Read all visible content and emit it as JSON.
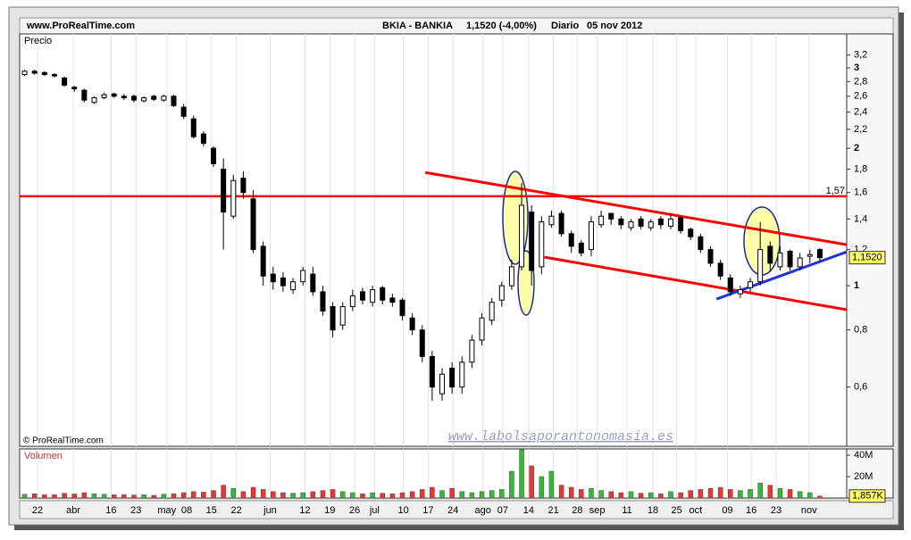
{
  "header": {
    "site": "www.ProRealTime.com",
    "ticker": "BKIA - BANKIA",
    "quote": "1,1520 (-4,00%)",
    "period": "Diario",
    "date": "05 nov 2012"
  },
  "chart_data": [
    {
      "type": "candlestick",
      "title": "Precio",
      "ylog": true,
      "xlim": [
        -0.5,
        82.7
      ],
      "ylim": [
        0.445,
        3.56
      ],
      "xticks": [
        {
          "value": 1.3,
          "label": "22"
        },
        {
          "value": 4.9,
          "label": "abr"
        },
        {
          "value": 8.7,
          "label": "16"
        },
        {
          "value": 11.2,
          "label": "23"
        },
        {
          "value": 14.3,
          "label": "may"
        },
        {
          "value": 16.3,
          "label": "08"
        },
        {
          "value": 18.8,
          "label": "15"
        },
        {
          "value": 21.3,
          "label": "22"
        },
        {
          "value": 24.7,
          "label": "jun"
        },
        {
          "value": 28.2,
          "label": "12"
        },
        {
          "value": 30.7,
          "label": "19"
        },
        {
          "value": 33.2,
          "label": "26"
        },
        {
          "value": 35.2,
          "label": "jul"
        },
        {
          "value": 38.1,
          "label": "10"
        },
        {
          "value": 40.6,
          "label": "17"
        },
        {
          "value": 43.1,
          "label": "24"
        },
        {
          "value": 46.1,
          "label": "ago"
        },
        {
          "value": 48.1,
          "label": "07"
        },
        {
          "value": 50.7,
          "label": "14"
        },
        {
          "value": 53.2,
          "label": "21"
        },
        {
          "value": 55.6,
          "label": "28"
        },
        {
          "value": 57.6,
          "label": "sep"
        },
        {
          "value": 60.6,
          "label": "11"
        },
        {
          "value": 63.2,
          "label": "18"
        },
        {
          "value": 65.6,
          "label": "25"
        },
        {
          "value": 67.5,
          "label": "oct"
        },
        {
          "value": 70.7,
          "label": "09"
        },
        {
          "value": 73.1,
          "label": "16"
        },
        {
          "value": 75.6,
          "label": "23"
        },
        {
          "value": 78.9,
          "label": "nov"
        }
      ],
      "yticks": [
        {
          "value": 3.2,
          "label": "3,2"
        },
        3,
        {
          "value": 2.8,
          "label": "2,8"
        },
        {
          "value": 2.6,
          "label": "2,6"
        },
        {
          "value": 2.4,
          "label": "2,4"
        },
        {
          "value": 2.2,
          "label": "2,2"
        },
        2,
        {
          "value": 1.8,
          "label": "1,8"
        },
        {
          "value": 1.6,
          "label": "1,6"
        },
        {
          "value": 1.4,
          "label": "1,4"
        },
        {
          "value": 1.2,
          "label": "1,2"
        },
        1,
        {
          "value": 0.8,
          "label": "0,8"
        },
        {
          "value": 0.6,
          "label": "0,6"
        }
      ],
      "open": [
        2.9,
        2.95,
        2.93,
        2.9,
        2.85,
        2.72,
        2.68,
        2.52,
        2.58,
        2.63,
        2.6,
        2.6,
        2.54,
        2.6,
        2.55,
        2.6,
        2.46,
        2.32,
        2.15,
        2.0,
        1.8,
        1.42,
        1.72,
        1.55,
        1.22,
        1.06,
        1.04,
        0.98,
        1.02,
        1.06,
        0.97,
        0.9,
        0.82,
        0.9,
        0.97,
        0.92,
        0.99,
        0.94,
        0.93,
        0.85,
        0.8,
        0.7,
        0.58,
        0.66,
        0.6,
        0.68,
        0.76,
        0.84,
        0.93,
        1.0,
        1.1,
        1.45,
        1.1,
        1.36,
        1.44,
        1.3,
        1.24,
        1.2,
        1.36,
        1.44,
        1.4,
        1.34,
        1.4,
        1.34,
        1.4,
        1.35,
        1.41,
        1.33,
        1.28,
        1.2,
        1.12,
        1.04,
        0.96,
        0.99,
        1.02,
        1.22,
        1.1,
        1.19,
        1.1,
        1.16,
        1.2
      ],
      "high": [
        2.97,
        2.97,
        2.95,
        2.92,
        2.87,
        2.74,
        2.7,
        2.6,
        2.65,
        2.65,
        2.63,
        2.62,
        2.6,
        2.62,
        2.62,
        2.62,
        2.5,
        2.36,
        2.18,
        2.02,
        1.9,
        1.75,
        1.78,
        1.62,
        1.25,
        1.1,
        1.07,
        1.04,
        1.1,
        1.1,
        1.0,
        0.92,
        0.92,
        0.98,
        0.99,
        1.0,
        1.0,
        0.96,
        0.94,
        0.87,
        0.82,
        0.72,
        0.66,
        0.68,
        0.7,
        0.78,
        0.87,
        0.94,
        1.02,
        1.14,
        1.68,
        1.5,
        1.42,
        1.46,
        1.46,
        1.32,
        1.26,
        1.42,
        1.46,
        1.44,
        1.42,
        1.4,
        1.42,
        1.4,
        1.42,
        1.44,
        1.42,
        1.34,
        1.3,
        1.22,
        1.14,
        1.06,
        1.0,
        1.04,
        1.38,
        1.25,
        1.22,
        1.2,
        1.18,
        1.2,
        1.21
      ],
      "low": [
        2.88,
        2.9,
        2.88,
        2.86,
        2.73,
        2.66,
        2.52,
        2.5,
        2.56,
        2.58,
        2.55,
        2.52,
        2.52,
        2.54,
        2.53,
        2.46,
        2.32,
        2.1,
        2.02,
        1.82,
        1.2,
        1.4,
        1.55,
        1.18,
        1.0,
        0.98,
        0.97,
        0.96,
        1.0,
        0.95,
        0.86,
        0.77,
        0.8,
        0.88,
        0.91,
        0.9,
        0.91,
        0.9,
        0.84,
        0.78,
        0.68,
        0.56,
        0.56,
        0.58,
        0.58,
        0.66,
        0.74,
        0.82,
        0.9,
        0.98,
        1.08,
        1.0,
        1.06,
        1.34,
        1.28,
        1.18,
        1.16,
        1.16,
        1.34,
        1.36,
        1.33,
        1.32,
        1.33,
        1.32,
        1.33,
        1.33,
        1.3,
        1.26,
        1.18,
        1.1,
        1.03,
        0.95,
        0.94,
        0.97,
        1.0,
        1.08,
        1.08,
        1.08,
        1.08,
        1.12,
        1.13
      ],
      "close": [
        2.95,
        2.92,
        2.9,
        2.88,
        2.75,
        2.7,
        2.55,
        2.58,
        2.62,
        2.6,
        2.58,
        2.55,
        2.58,
        2.56,
        2.6,
        2.48,
        2.35,
        2.12,
        2.05,
        1.85,
        1.45,
        1.7,
        1.6,
        1.2,
        1.05,
        1.02,
        1.0,
        1.02,
        1.08,
        0.97,
        0.88,
        0.8,
        0.9,
        0.95,
        0.93,
        0.98,
        0.93,
        0.92,
        0.86,
        0.8,
        0.7,
        0.6,
        0.64,
        0.6,
        0.68,
        0.76,
        0.85,
        0.92,
        1.0,
        1.1,
        1.5,
        1.08,
        1.38,
        1.42,
        1.3,
        1.22,
        1.18,
        1.38,
        1.42,
        1.4,
        1.36,
        1.38,
        1.35,
        1.38,
        1.36,
        1.4,
        1.32,
        1.28,
        1.2,
        1.12,
        1.05,
        0.97,
        0.98,
        1.02,
        1.2,
        1.12,
        1.18,
        1.1,
        1.15,
        1.17,
        1.152
      ],
      "last_label": {
        "value": 1.152,
        "label": "1,1520"
      },
      "hlines": [
        {
          "value": 1.57,
          "label": "1,57",
          "color": "#ff0000"
        }
      ],
      "trendlines": [
        {
          "x": [
            40.3,
            82.7
          ],
          "y": [
            1.77,
            1.23
          ],
          "color": "#ff0000"
        },
        {
          "x": [
            52.3,
            82.7
          ],
          "y": [
            1.155,
            0.886
          ],
          "color": "#ff0000"
        },
        {
          "x": [
            69.6,
            82.7
          ],
          "y": [
            0.935,
            1.186
          ],
          "color": "#2233dd"
        }
      ],
      "copyright": "© ProRealTime.com",
      "watermark": "www.labolsaporantonomasia.es"
    },
    {
      "type": "bar",
      "title": "Volumen",
      "up_color": "#33bb33",
      "down_color": "#ee3333",
      "ylim": [
        0,
        45800000
      ],
      "yticks": [
        {
          "value": 40000000,
          "label": "40M"
        },
        {
          "value": 20000000,
          "label": "20M"
        }
      ],
      "values": [
        3500000,
        4000000,
        3000000,
        3200000,
        4500000,
        3800000,
        5000000,
        4000000,
        3500000,
        3000000,
        3200000,
        2800000,
        3000000,
        2500000,
        3500000,
        4000000,
        5000000,
        6000000,
        5500000,
        7000000,
        12000000,
        9000000,
        6000000,
        10000000,
        8000000,
        6000000,
        5000000,
        4500000,
        5000000,
        6000000,
        7000000,
        8000000,
        6000000,
        5000000,
        4000000,
        5000000,
        4500000,
        4000000,
        5000000,
        6000000,
        8000000,
        10000000,
        7000000,
        9000000,
        6000000,
        5000000,
        6000000,
        7000000,
        8000000,
        25000000,
        45000000,
        30000000,
        20000000,
        25000000,
        12000000,
        10000000,
        8000000,
        9000000,
        7000000,
        6000000,
        5000000,
        6000000,
        4500000,
        5000000,
        4000000,
        6000000,
        5000000,
        7000000,
        8000000,
        9000000,
        10000000,
        8000000,
        7000000,
        8000000,
        14000000,
        12000000,
        9000000,
        8000000,
        6000000,
        5000000,
        1857000
      ],
      "last_label": {
        "value": 1857000,
        "label": "1,857K"
      }
    }
  ]
}
